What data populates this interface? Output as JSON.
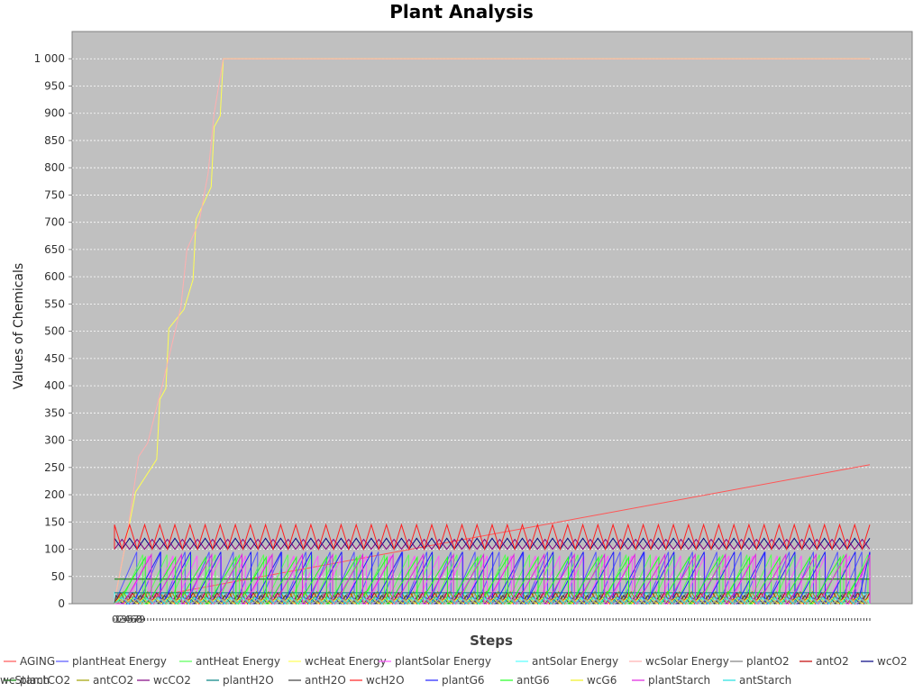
{
  "chart_data": {
    "type": "line",
    "title": "Plant Analysis",
    "xlabel": "Steps",
    "ylabel": "Values of Chemicals",
    "ylim": [
      0,
      1050
    ],
    "xlim": [
      0,
      250
    ],
    "yticks": [
      0,
      50,
      100,
      150,
      200,
      250,
      300,
      350,
      400,
      450,
      500,
      550,
      600,
      650,
      700,
      750,
      800,
      850,
      900,
      950,
      1000
    ],
    "ytick_labels": [
      "0",
      "50",
      "100",
      "150",
      "200",
      "250",
      "300",
      "350",
      "400",
      "450",
      "500",
      "550",
      "600",
      "650",
      "700",
      "750",
      "800",
      "850",
      "900",
      "950",
      "1 000"
    ],
    "xtick_labels": [
      "0",
      "1",
      "2",
      "3",
      "4",
      "5",
      "6",
      "7",
      "8",
      "9"
    ],
    "grid": true,
    "legend_position": "bottom",
    "plot_background": "#c0c0c0",
    "series": [
      {
        "name": "AGING",
        "color": "#ff5555",
        "pattern": "linear",
        "params": {
          "start": 0,
          "end": 255,
          "start_x": 0,
          "end_x": 250
        }
      },
      {
        "name": "plantHeat Energy",
        "color": "#5555ff",
        "pattern": "saw",
        "params": {
          "min": 0,
          "max": 95,
          "period": 8,
          "start_x": 0
        }
      },
      {
        "name": "antHeat Energy",
        "color": "#55ff55",
        "pattern": "saw",
        "params": {
          "min": 0,
          "max": 90,
          "period": 8,
          "start_x": 2
        }
      },
      {
        "name": "wcHeat Energy",
        "color": "#ffff55",
        "pattern": "points",
        "points": [
          [
            0,
            5
          ],
          [
            7,
            205
          ],
          [
            14,
            265
          ],
          [
            15,
            375
          ],
          [
            17,
            395
          ],
          [
            18,
            505
          ],
          [
            23,
            540
          ],
          [
            26,
            595
          ],
          [
            27,
            705
          ],
          [
            32,
            765
          ],
          [
            33,
            875
          ],
          [
            35,
            895
          ],
          [
            36,
            1000
          ],
          [
            250,
            1000
          ]
        ]
      },
      {
        "name": "plantSolar Energy",
        "color": "#ff55ff",
        "pattern": "saw",
        "params": {
          "min": 0,
          "max": 88,
          "period": 8,
          "start_x": 4
        }
      },
      {
        "name": "antSolar Energy",
        "color": "#55ffff",
        "pattern": "zigzag",
        "params": {
          "min": 0,
          "max": 20,
          "period": 4,
          "start_x": 0
        }
      },
      {
        "name": "wcSolar Energy",
        "color": "#ffafaf",
        "pattern": "points",
        "points": [
          [
            0,
            5
          ],
          [
            4,
            120
          ],
          [
            8,
            270
          ],
          [
            11,
            295
          ],
          [
            16,
            405
          ],
          [
            22,
            545
          ],
          [
            24,
            650
          ],
          [
            28,
            700
          ],
          [
            31,
            790
          ],
          [
            33,
            900
          ],
          [
            36,
            1000
          ],
          [
            250,
            1000
          ]
        ]
      },
      {
        "name": "plantO2",
        "color": "#808080",
        "pattern": "zigzag",
        "params": {
          "min": 0,
          "max": 18,
          "period": 4,
          "start_x": 1
        }
      },
      {
        "name": "antO2",
        "color": "#c00000",
        "pattern": "zigzag",
        "params": {
          "min": 0,
          "max": 20,
          "period": 4,
          "start_x": 2
        }
      },
      {
        "name": "wcO2",
        "color": "#000080",
        "pattern": "zigzag",
        "params": {
          "min": 100,
          "max": 120,
          "period": 5,
          "start_x": 0
        }
      },
      {
        "name": "plantCO2",
        "color": "#008000",
        "pattern": "constant",
        "params": {
          "value": 45
        }
      },
      {
        "name": "antCO2",
        "color": "#a0a000",
        "pattern": "zigzag",
        "params": {
          "min": 0,
          "max": 22,
          "period": 4,
          "start_x": 3
        }
      },
      {
        "name": "wcCO2",
        "color": "#800080",
        "pattern": "zigzag",
        "params": {
          "min": 100,
          "max": 118,
          "period": 5,
          "start_x": 2.5
        }
      },
      {
        "name": "plantH2O",
        "color": "#008080",
        "pattern": "constant",
        "params": {
          "value": 20
        }
      },
      {
        "name": "antH2O",
        "color": "#404040",
        "pattern": "zigzag",
        "params": {
          "min": 0,
          "max": 15,
          "period": 4,
          "start_x": 0.5
        }
      },
      {
        "name": "wcH2O",
        "color": "#ff2020",
        "pattern": "zigzag",
        "params": {
          "min": 100,
          "max": 145,
          "period": 5,
          "start_x": 0
        }
      },
      {
        "name": "plantG6",
        "color": "#2020ff",
        "pattern": "saw",
        "params": {
          "min": 0,
          "max": 95,
          "period": 10,
          "start_x": 6
        }
      },
      {
        "name": "antG6",
        "color": "#20ff20",
        "pattern": "saw",
        "params": {
          "min": 0,
          "max": 85,
          "period": 10,
          "start_x": 1
        }
      },
      {
        "name": "wcG6",
        "color": "#f0f020",
        "pattern": "zigzag",
        "params": {
          "min": 0,
          "max": 10,
          "period": 4,
          "start_x": 1.5
        }
      },
      {
        "name": "plantStarch",
        "color": "#e020e0",
        "pattern": "saw",
        "params": {
          "min": 0,
          "max": 90,
          "period": 10,
          "start_x": 3
        }
      },
      {
        "name": "antStarch",
        "color": "#20e0e0",
        "pattern": "zigzag",
        "params": {
          "min": 0,
          "max": 12,
          "period": 4,
          "start_x": 2.5
        }
      },
      {
        "name": "wcStarch",
        "color": "#c0a0a0",
        "pattern": "zigzag",
        "params": {
          "min": 0,
          "max": 8,
          "period": 4,
          "start_x": 3.5
        }
      }
    ]
  }
}
